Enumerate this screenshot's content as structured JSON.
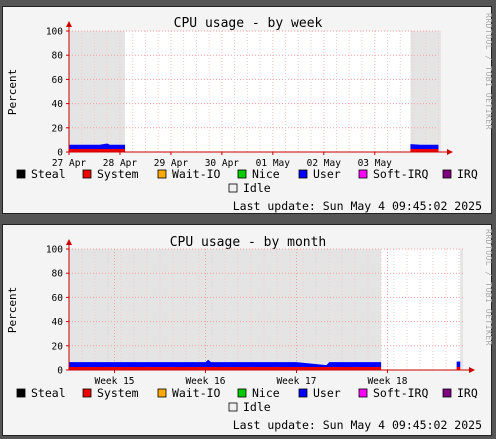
{
  "legend": {
    "items": [
      {
        "label": "Steal",
        "color": "#000000"
      },
      {
        "label": "System",
        "color": "#ee0000"
      },
      {
        "label": "Wait-IO",
        "color": "#ffaa00"
      },
      {
        "label": "Nice",
        "color": "#00cc00"
      },
      {
        "label": "User",
        "color": "#0000ff"
      },
      {
        "label": "Soft-IRQ",
        "color": "#ff00ff"
      },
      {
        "label": "IRQ",
        "color": "#800080"
      },
      {
        "label": "Idle",
        "color": "#f0f0f0"
      }
    ]
  },
  "last_update": "Last update: Sun May  4 09:45:02 2025",
  "watermark": "RRDTOOL / TOBI OETIKER",
  "chart_data": [
    {
      "type": "area",
      "title": "CPU usage - by week",
      "ylabel": "Percent",
      "ylim": [
        0,
        100
      ],
      "yticks": [
        0,
        20,
        40,
        60,
        80,
        100
      ],
      "xticks": [
        "27 Apr",
        "28 Apr",
        "29 Apr",
        "30 Apr",
        "01 May",
        "02 May",
        "03 May"
      ],
      "x_range": [
        0,
        7.3
      ],
      "grid": true,
      "unknown_ranges": [
        [
          0,
          1.1
        ],
        [
          6.7,
          7.3
        ]
      ],
      "series": [
        {
          "name": "System",
          "segments": [
            {
              "x": [
                0,
                0.5,
                1.0,
                1.1
              ],
              "y": [
                2.5,
                2.5,
                2.5,
                2.5
              ]
            },
            {
              "x": [
                6.7,
                7.0,
                7.25
              ],
              "y": [
                2.5,
                2.5,
                2.5
              ]
            }
          ]
        },
        {
          "name": "User",
          "segments": [
            {
              "x": [
                0,
                0.2,
                0.4,
                0.6,
                0.75,
                0.8,
                1.0,
                1.1
              ],
              "y": [
                3.5,
                3.5,
                3.5,
                3.5,
                4.5,
                3.5,
                3.5,
                3.5
              ]
            },
            {
              "x": [
                6.7,
                6.9,
                7.1,
                7.25
              ],
              "y": [
                4.0,
                3.5,
                3.5,
                3.5
              ]
            }
          ]
        }
      ]
    },
    {
      "type": "area",
      "title": "CPU usage - by month",
      "ylabel": "Percent",
      "ylim": [
        0,
        100
      ],
      "yticks": [
        0,
        20,
        40,
        60,
        80,
        100
      ],
      "xticks": [
        "Week 15",
        "Week 16",
        "Week 17",
        "Week 18"
      ],
      "x_range": [
        0,
        4.33
      ],
      "grid": true,
      "unknown_ranges": [
        [
          0,
          3.43
        ],
        [
          4.3,
          4.33
        ]
      ],
      "series": [
        {
          "name": "System",
          "segments": [
            {
              "x": [
                0,
                1.0,
                2.0,
                3.0,
                3.43
              ],
              "y": [
                2.5,
                2.5,
                2.5,
                2.5,
                2.5
              ]
            },
            {
              "x": [
                4.26,
                4.3
              ],
              "y": [
                2.5,
                2.5
              ]
            }
          ]
        },
        {
          "name": "User",
          "segments": [
            {
              "x": [
                0,
                0.5,
                1.0,
                1.5,
                1.53,
                1.56,
                2.0,
                2.5,
                2.83,
                2.86,
                2.89,
                3.2,
                3.43
              ],
              "y": [
                4.0,
                4.0,
                4.0,
                4.0,
                6.0,
                4.0,
                4.0,
                4.0,
                1.5,
                4.0,
                4.0,
                4.0,
                4.0
              ]
            },
            {
              "x": [
                4.26,
                4.3
              ],
              "y": [
                4.5,
                4.5
              ]
            }
          ]
        }
      ]
    }
  ]
}
